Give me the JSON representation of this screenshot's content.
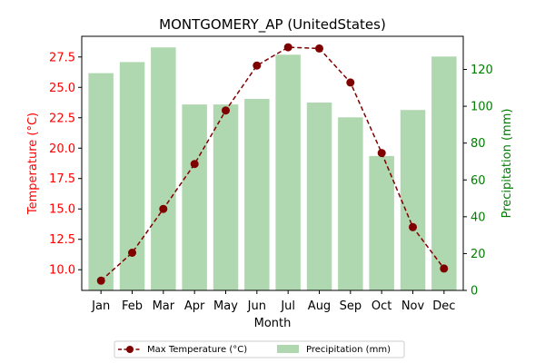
{
  "chart_data": {
    "type": "bar",
    "title": "MONTGOMERY_AP (UnitedStates)",
    "xlabel": "Month",
    "categories": [
      "Jan",
      "Feb",
      "Mar",
      "Apr",
      "May",
      "Jun",
      "Jul",
      "Aug",
      "Sep",
      "Oct",
      "Nov",
      "Dec"
    ],
    "y_left": {
      "label": "Temperature (°C)",
      "color": "#ff0000",
      "ylim": [
        8.3,
        29.2
      ],
      "ticks": [
        "10.0",
        "12.5",
        "15.0",
        "17.5",
        "20.0",
        "22.5",
        "25.0",
        "27.5"
      ]
    },
    "y_right": {
      "label": "Precipitation (mm)",
      "color": "#008000",
      "ylim": [
        0,
        138
      ],
      "ticks": [
        "0",
        "20",
        "40",
        "60",
        "80",
        "100",
        "120"
      ]
    },
    "series": [
      {
        "name": "Max Temperature (°C)",
        "type": "line",
        "axis": "left",
        "color": "#800000",
        "values": [
          9.1,
          11.4,
          15.0,
          18.7,
          23.1,
          26.8,
          28.3,
          28.2,
          25.4,
          19.6,
          13.5,
          10.1
        ]
      },
      {
        "name": "Precipitation (mm)",
        "type": "bar",
        "axis": "right",
        "color": "#b0d8b0",
        "values": [
          118,
          124,
          132,
          101,
          101,
          104,
          128,
          102,
          94,
          73,
          98,
          127
        ]
      }
    ],
    "grid": false,
    "legend_position": "bottom-center"
  }
}
